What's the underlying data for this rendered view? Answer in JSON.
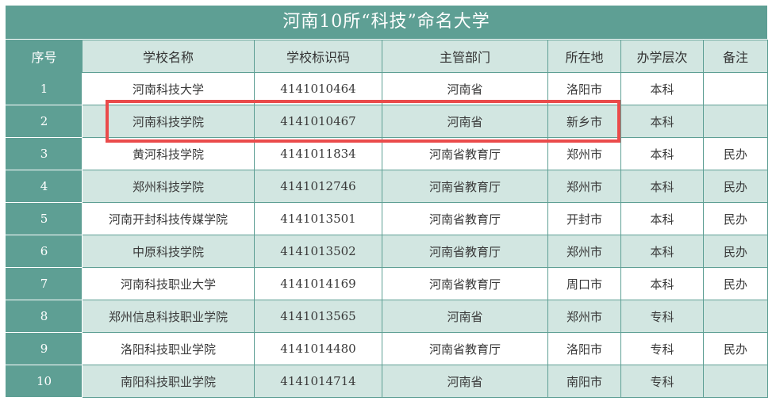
{
  "title": "河南10所“科技”命名大学",
  "headers": [
    "序号",
    "学校名称",
    "学校标识码",
    "主管部门",
    "所在地",
    "办学层次",
    "备注"
  ],
  "rows": [
    [
      "1",
      "河南科技大学",
      "4141010464",
      "河南省",
      "洛阳市",
      "本科",
      ""
    ],
    [
      "2",
      "河南科技学院",
      "4141010467",
      "河南省",
      "新乡市",
      "本科",
      ""
    ],
    [
      "3",
      "黄河科技学院",
      "4141011834",
      "河南省教育厅",
      "郑州市",
      "本科",
      "民办"
    ],
    [
      "4",
      "郑州科技学院",
      "4141012746",
      "河南省教育厅",
      "郑州市",
      "本科",
      "民办"
    ],
    [
      "5",
      "河南开封科技传媒学院",
      "4141013501",
      "河南省教育厅",
      "开封市",
      "本科",
      "民办"
    ],
    [
      "6",
      "中原科技学院",
      "4141013502",
      "河南省教育厅",
      "郑州市",
      "本科",
      "民办"
    ],
    [
      "7",
      "河南科技职业大学",
      "4141014169",
      "河南省教育厅",
      "周口市",
      "本科",
      "民办"
    ],
    [
      "8",
      "郑州信息科技职业学院",
      "4141013565",
      "河南省",
      "郑州市",
      "专科",
      ""
    ],
    [
      "9",
      "洛阳科技职业学院",
      "4141014480",
      "河南省教育厅",
      "洛阳市",
      "专科",
      "民办"
    ],
    [
      "10",
      "南阳科技职业学院",
      "4141014714",
      "河南省",
      "南阳市",
      "专科",
      ""
    ]
  ],
  "colors": {
    "header_dark": "#5e9f94",
    "header_light": "#d2e6e1",
    "highlight": "#ea4b4b"
  }
}
